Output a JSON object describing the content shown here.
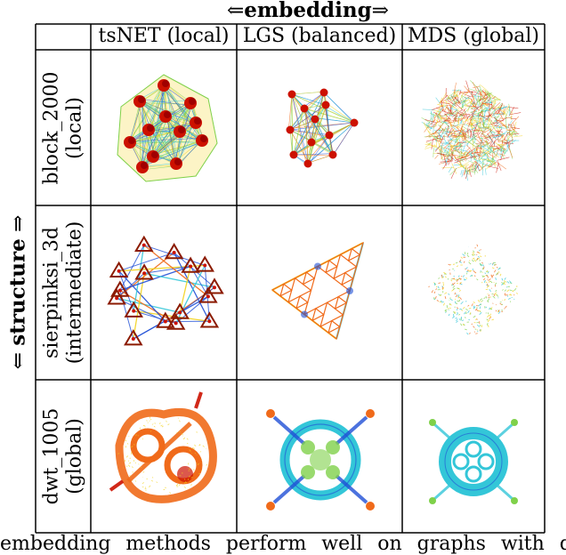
{
  "figure": {
    "top_title": {
      "arrow_left": "⇐",
      "text": "embedding",
      "arrow_right": "⇒"
    },
    "side_title": {
      "arrow_left": "⇐",
      "text": "structure",
      "arrow_right": "⇒"
    },
    "columns": [
      "tsNET (local)",
      "LGS (balanced)",
      "MDS (global)"
    ],
    "rows": [
      {
        "line1": "block_2000",
        "line2": "(local)"
      },
      {
        "line1": "sierpinksi_3d",
        "line2": "(intermediate)"
      },
      {
        "line1": "dwt_1005",
        "line2": "(global)"
      }
    ],
    "caption": "embedding methods perform well on graphs with d"
  },
  "colors": {
    "cluster_red": "#cc1100",
    "edge_blue": "#1f4fd6",
    "edge_cyan": "#33c6d8",
    "edge_yellow": "#f2d21c",
    "edge_orange": "#f06a1a",
    "edge_green": "#7fd14a"
  }
}
